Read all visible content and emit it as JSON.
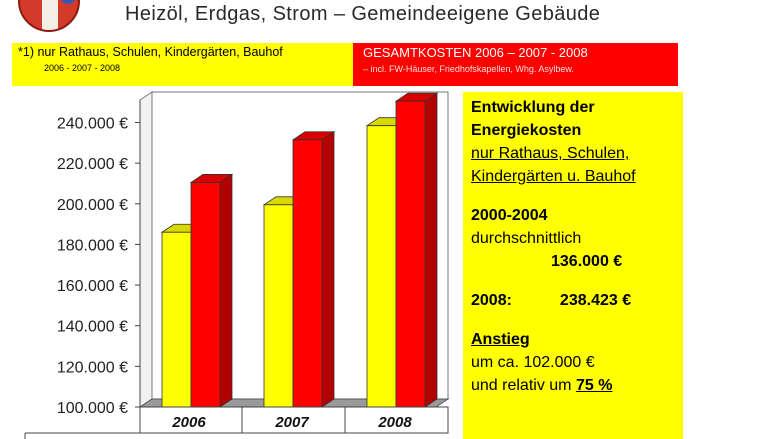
{
  "header": {
    "title": "Heizöl, Erdgas, Strom – Gemeindeeigene Gebäude"
  },
  "legend": {
    "left_line1": "*1) nur Rathaus, Schulen, Kindergärten, Bauhof",
    "left_line2": "2006 - 2007 - 2008",
    "left_color": "#ffff00",
    "right_line1": "GESAMTKOSTEN 2006 – 2007 - 2008",
    "right_line2": "– incl. FW-Häuser, Friedhofskapellen, Whg. Asylbew.",
    "right_color": "#ff0000"
  },
  "chart_data": {
    "type": "bar",
    "categories": [
      "2006",
      "2007",
      "2008"
    ],
    "series": [
      {
        "values": [
          186000,
          199500,
          238423
        ],
        "color": "#ffff00"
      },
      {
        "values": [
          210500,
          231500,
          250500
        ],
        "color": "#ff0000"
      }
    ],
    "yticks": [
      "100.000 €",
      "120.000 €",
      "140.000 €",
      "160.000 €",
      "180.000 €",
      "200.000 €",
      "220.000 €",
      "240.000 €"
    ],
    "ylim": [
      100000,
      250000
    ],
    "grid": false,
    "three_d": true
  },
  "info": {
    "title1": "Entwicklung der",
    "title2": "Energiekosten",
    "sub1": "nur Rathaus, Schulen,",
    "sub2": "Kindergärten u. Bauhof",
    "period": "2000-2004",
    "avg_label": "durchschnittlich",
    "avg_value": "136.000 €",
    "y2008_label": "2008:",
    "y2008_value": "238.423 €",
    "increase_title": "Anstieg",
    "increase_line1": "um ca. 102.000 €",
    "increase_line2_prefix": "und relativ um",
    "increase_pct": "75 %"
  }
}
